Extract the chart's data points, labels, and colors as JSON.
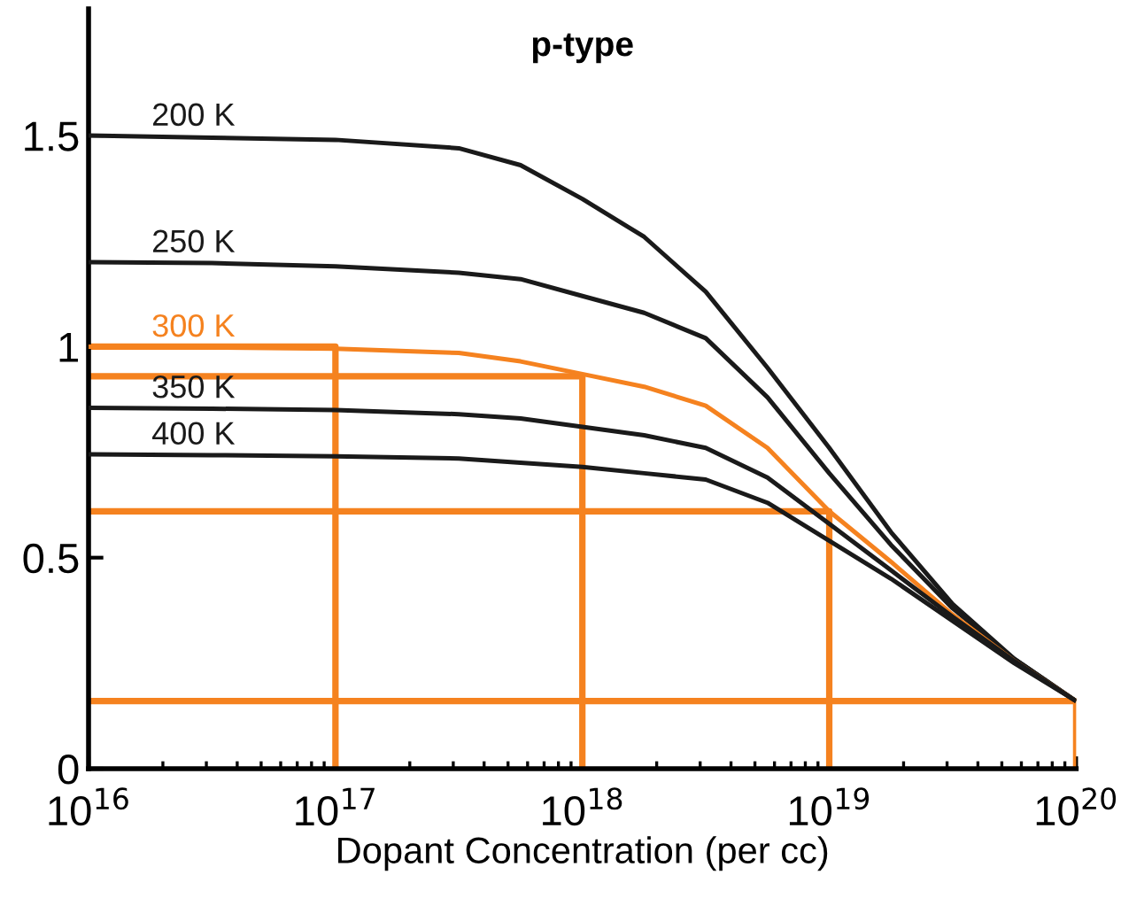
{
  "chart_data": {
    "type": "line",
    "title": "p-type",
    "xlabel": "Dopant Concentration (per cc)",
    "log": "x",
    "xlim": [
      1e+16,
      1e+20
    ],
    "ylim": [
      0,
      1.8
    ],
    "xticks": [
      {
        "value": 1e+16,
        "label": "10$^{16}$"
      },
      {
        "value": 1e+17,
        "label": "10$^{17}$"
      },
      {
        "value": 1e+18,
        "label": "10$^{18}$"
      },
      {
        "value": 1e+19,
        "label": "10$^{19}$"
      },
      {
        "value": 1e+20,
        "label": "10$^{20}$"
      }
    ],
    "yticks": [
      0,
      0.5,
      1,
      1.5
    ],
    "grid": false,
    "legend": false,
    "marker": "none",
    "line_style": "solid",
    "x": [
      1e+16,
      3.16e+16,
      1e+17,
      3.16e+17,
      5.62e+17,
      1e+18,
      1.78e+18,
      3.16e+18,
      5.62e+18,
      1e+19,
      1.78e+19,
      3.16e+19,
      5.62e+19,
      1e+20
    ],
    "series": [
      {
        "name": "200 K",
        "color": "#1a1a1a",
        "values": [
          1.5,
          1.495,
          1.49,
          1.47,
          1.43,
          1.35,
          1.26,
          1.13,
          0.95,
          0.76,
          0.56,
          0.39,
          0.26,
          0.16
        ]
      },
      {
        "name": "250 K",
        "color": "#1a1a1a",
        "values": [
          1.2,
          1.198,
          1.19,
          1.175,
          1.16,
          1.12,
          1.08,
          1.02,
          0.88,
          0.7,
          0.53,
          0.38,
          0.26,
          0.16
        ]
      },
      {
        "name": "300 K",
        "color": "#f5821f",
        "values": [
          1.0,
          0.998,
          0.995,
          0.985,
          0.965,
          0.935,
          0.905,
          0.86,
          0.76,
          0.61,
          0.49,
          0.365,
          0.255,
          0.16
        ]
      },
      {
        "name": "350 K",
        "color": "#1a1a1a",
        "values": [
          0.855,
          0.853,
          0.85,
          0.84,
          0.83,
          0.81,
          0.79,
          0.76,
          0.69,
          0.58,
          0.47,
          0.36,
          0.255,
          0.16
        ]
      },
      {
        "name": "400 K",
        "color": "#1a1a1a",
        "values": [
          0.745,
          0.743,
          0.74,
          0.735,
          0.725,
          0.715,
          0.7,
          0.685,
          0.63,
          0.54,
          0.45,
          0.35,
          0.25,
          0.16
        ]
      },
      {
        "color": "#f5821f",
        "x": [
          1e+16,
          1e+17,
          1e+17
        ],
        "values": [
          1.0,
          1.0,
          0
        ]
      },
      {
        "color": "#f5821f",
        "x": [
          1e+16,
          1e+18,
          1e+18
        ],
        "values": [
          0.93,
          0.93,
          0
        ]
      },
      {
        "color": "#f5821f",
        "x": [
          1e+16,
          1e+19,
          1e+19
        ],
        "values": [
          0.61,
          0.61,
          0
        ]
      },
      {
        "color": "#f5821f",
        "x": [
          1e+16,
          1e+20,
          1e+20
        ],
        "values": [
          0.16,
          0.16,
          0
        ]
      }
    ]
  }
}
